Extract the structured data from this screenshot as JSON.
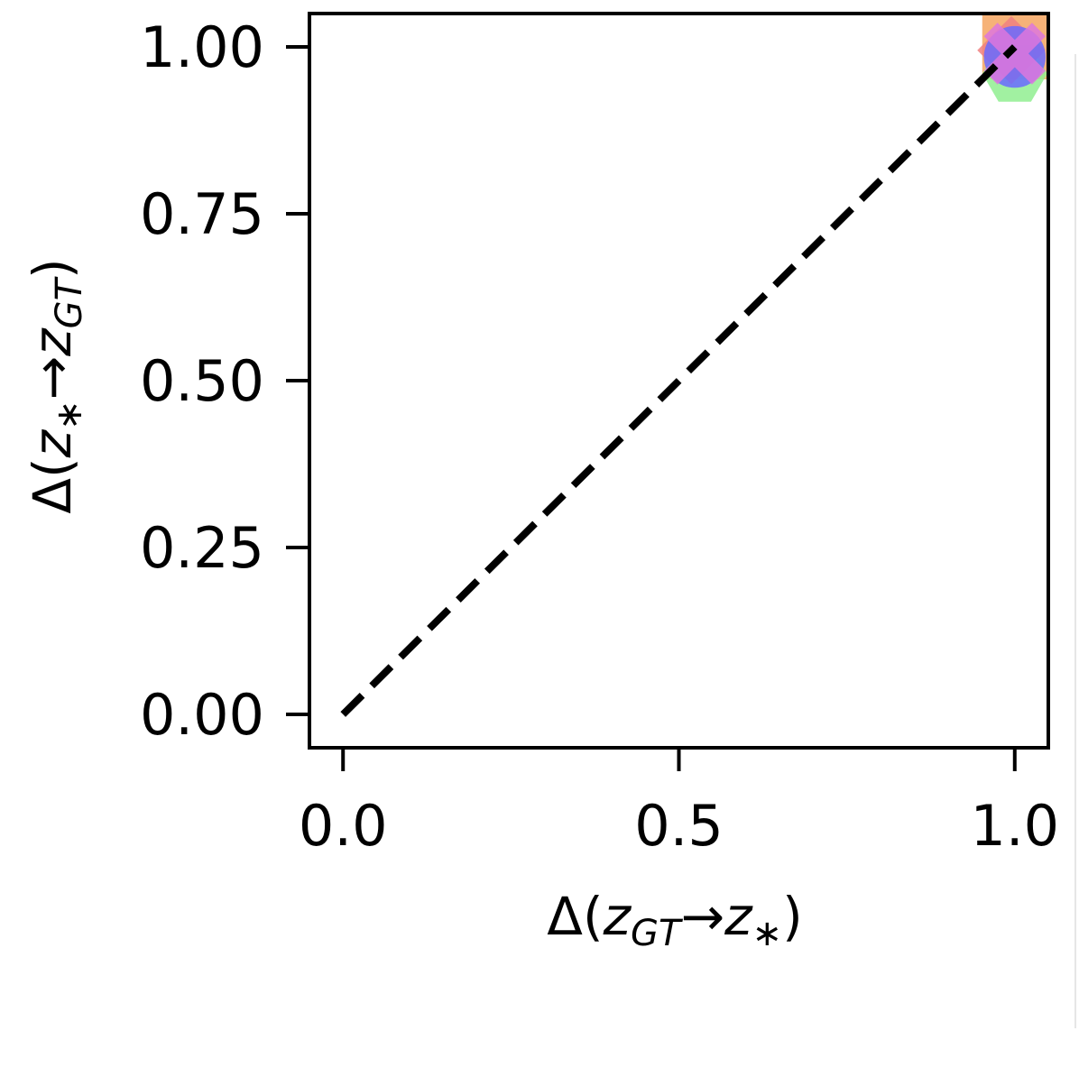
{
  "chart_data": {
    "type": "scatter",
    "xlim": [
      -0.05,
      1.05
    ],
    "ylim": [
      -0.05,
      1.05
    ],
    "x_ticks": [
      0.0,
      0.5,
      1.0
    ],
    "y_ticks": [
      0.0,
      0.25,
      0.5,
      0.75,
      1.0
    ],
    "x_tick_labels": [
      "0.0",
      "0.5",
      "1.0"
    ],
    "y_tick_labels": [
      "0.00",
      "0.25",
      "0.50",
      "0.75",
      "1.00"
    ],
    "xlabel": {
      "prefix": "Δ(",
      "z1": "z",
      "sub1": "GT",
      "arrow": "→",
      "z2": "z",
      "sub2": "∗",
      "suffix": ")"
    },
    "ylabel": {
      "prefix": "Δ(",
      "z1": "z",
      "sub1": "∗",
      "arrow": "→",
      "z2": "z",
      "sub2": "GT",
      "suffix": ")"
    },
    "grid": false,
    "reference_line": {
      "style": "dashed",
      "color": "#000000",
      "x": [
        0.0,
        1.0
      ],
      "y": [
        0.0,
        1.0
      ]
    },
    "series": [
      {
        "marker": "square",
        "color": "#f4a460",
        "x": [
          1.0
        ],
        "y": [
          1.0
        ]
      },
      {
        "marker": "hexagon",
        "color": "#90ee90",
        "x": [
          1.0
        ],
        "y": [
          0.96
        ]
      },
      {
        "marker": "diamond",
        "color": "#f08080",
        "x": [
          0.995
        ],
        "y": [
          0.995
        ]
      },
      {
        "marker": "circle",
        "color": "#6a6aff",
        "x": [
          1.0
        ],
        "y": [
          0.985
        ]
      },
      {
        "marker": "x",
        "color": "#dd77dd",
        "x": [
          1.0
        ],
        "y": [
          0.99
        ]
      }
    ]
  }
}
